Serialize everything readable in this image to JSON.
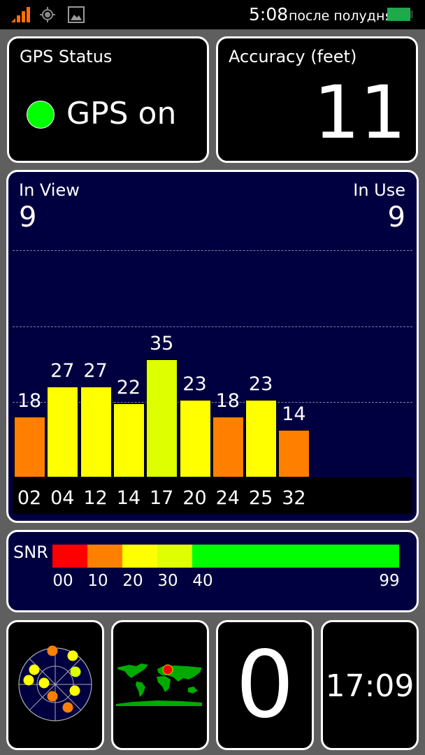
{
  "status_bar": {
    "time": "5:08",
    "time_suffix": "после полудня",
    "icons": [
      "signal-icon",
      "gps-icon",
      "image-icon",
      "battery-icon"
    ]
  },
  "gps_status": {
    "title": "GPS Status",
    "value": "GPS on",
    "indicator_color": "#00ff00"
  },
  "accuracy": {
    "title": "Accuracy (feet)",
    "value": "11"
  },
  "satellites": {
    "in_view_label": "In View",
    "in_view": "9",
    "in_use_label": "In Use",
    "in_use": "9"
  },
  "chart_data": {
    "type": "bar",
    "categories": [
      "02",
      "04",
      "12",
      "14",
      "17",
      "20",
      "24",
      "25",
      "32"
    ],
    "values": [
      18,
      27,
      27,
      22,
      35,
      23,
      18,
      23,
      14
    ],
    "colors": [
      "#ff8000",
      "#ffff00",
      "#ffff00",
      "#ffff00",
      "#ddff00",
      "#ffff00",
      "#ff8000",
      "#ffff00",
      "#ff8000"
    ],
    "grid": true,
    "background": "#000040"
  },
  "snr": {
    "label": "SNR",
    "scale": [
      {
        "label": "00",
        "color": "#ff0000"
      },
      {
        "label": "10",
        "color": "#ff8000"
      },
      {
        "label": "20",
        "color": "#ffff00"
      },
      {
        "label": "30",
        "color": "#ddff00"
      },
      {
        "label": "40",
        "color": "#00ff00"
      }
    ],
    "max_label": "99"
  },
  "tiles": {
    "fix_count": "0",
    "clock": "17:09"
  }
}
